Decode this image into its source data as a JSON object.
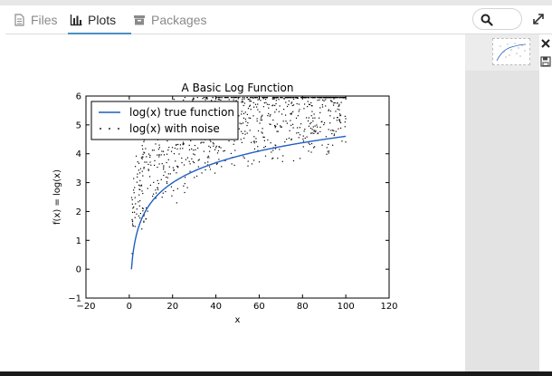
{
  "tabs": [
    {
      "label": "Files",
      "icon": "file-icon",
      "active": false
    },
    {
      "label": "Plots",
      "icon": "bar-chart-icon",
      "active": true
    },
    {
      "label": "Packages",
      "icon": "package-icon",
      "active": false
    }
  ],
  "toolbar": {
    "search_icon": "search-icon",
    "expand_icon": "expand-icon",
    "close_icon": "close-icon",
    "save_icon": "save-icon"
  },
  "colors": {
    "accent": "#4a8fc1",
    "line": "#1f5fc4",
    "points": "#000000"
  },
  "chart_data": {
    "type": "scatter",
    "title": "A Basic Log Function",
    "xlabel": "x",
    "ylabel": "f(x) = log(x)",
    "xlim": [
      -20,
      120
    ],
    "ylim": [
      -1,
      6
    ],
    "xticks": [
      "−20",
      "0",
      "20",
      "40",
      "60",
      "80",
      "100",
      "120"
    ],
    "yticks": [
      "−1",
      "0",
      "1",
      "2",
      "3",
      "4",
      "5",
      "6"
    ],
    "legend_position": "top-left",
    "grid": false,
    "series": [
      {
        "name": "log(x) true function",
        "kind": "line",
        "function": "log(x)",
        "x_range": [
          1,
          100
        ],
        "points": 200
      },
      {
        "name": "log(x) with noise",
        "kind": "scatter",
        "function": "log(x) + noise",
        "x_range": [
          1,
          100
        ],
        "points": 1000,
        "noise_distribution": "uniform",
        "noise_range": [
          0,
          3
        ]
      }
    ]
  }
}
